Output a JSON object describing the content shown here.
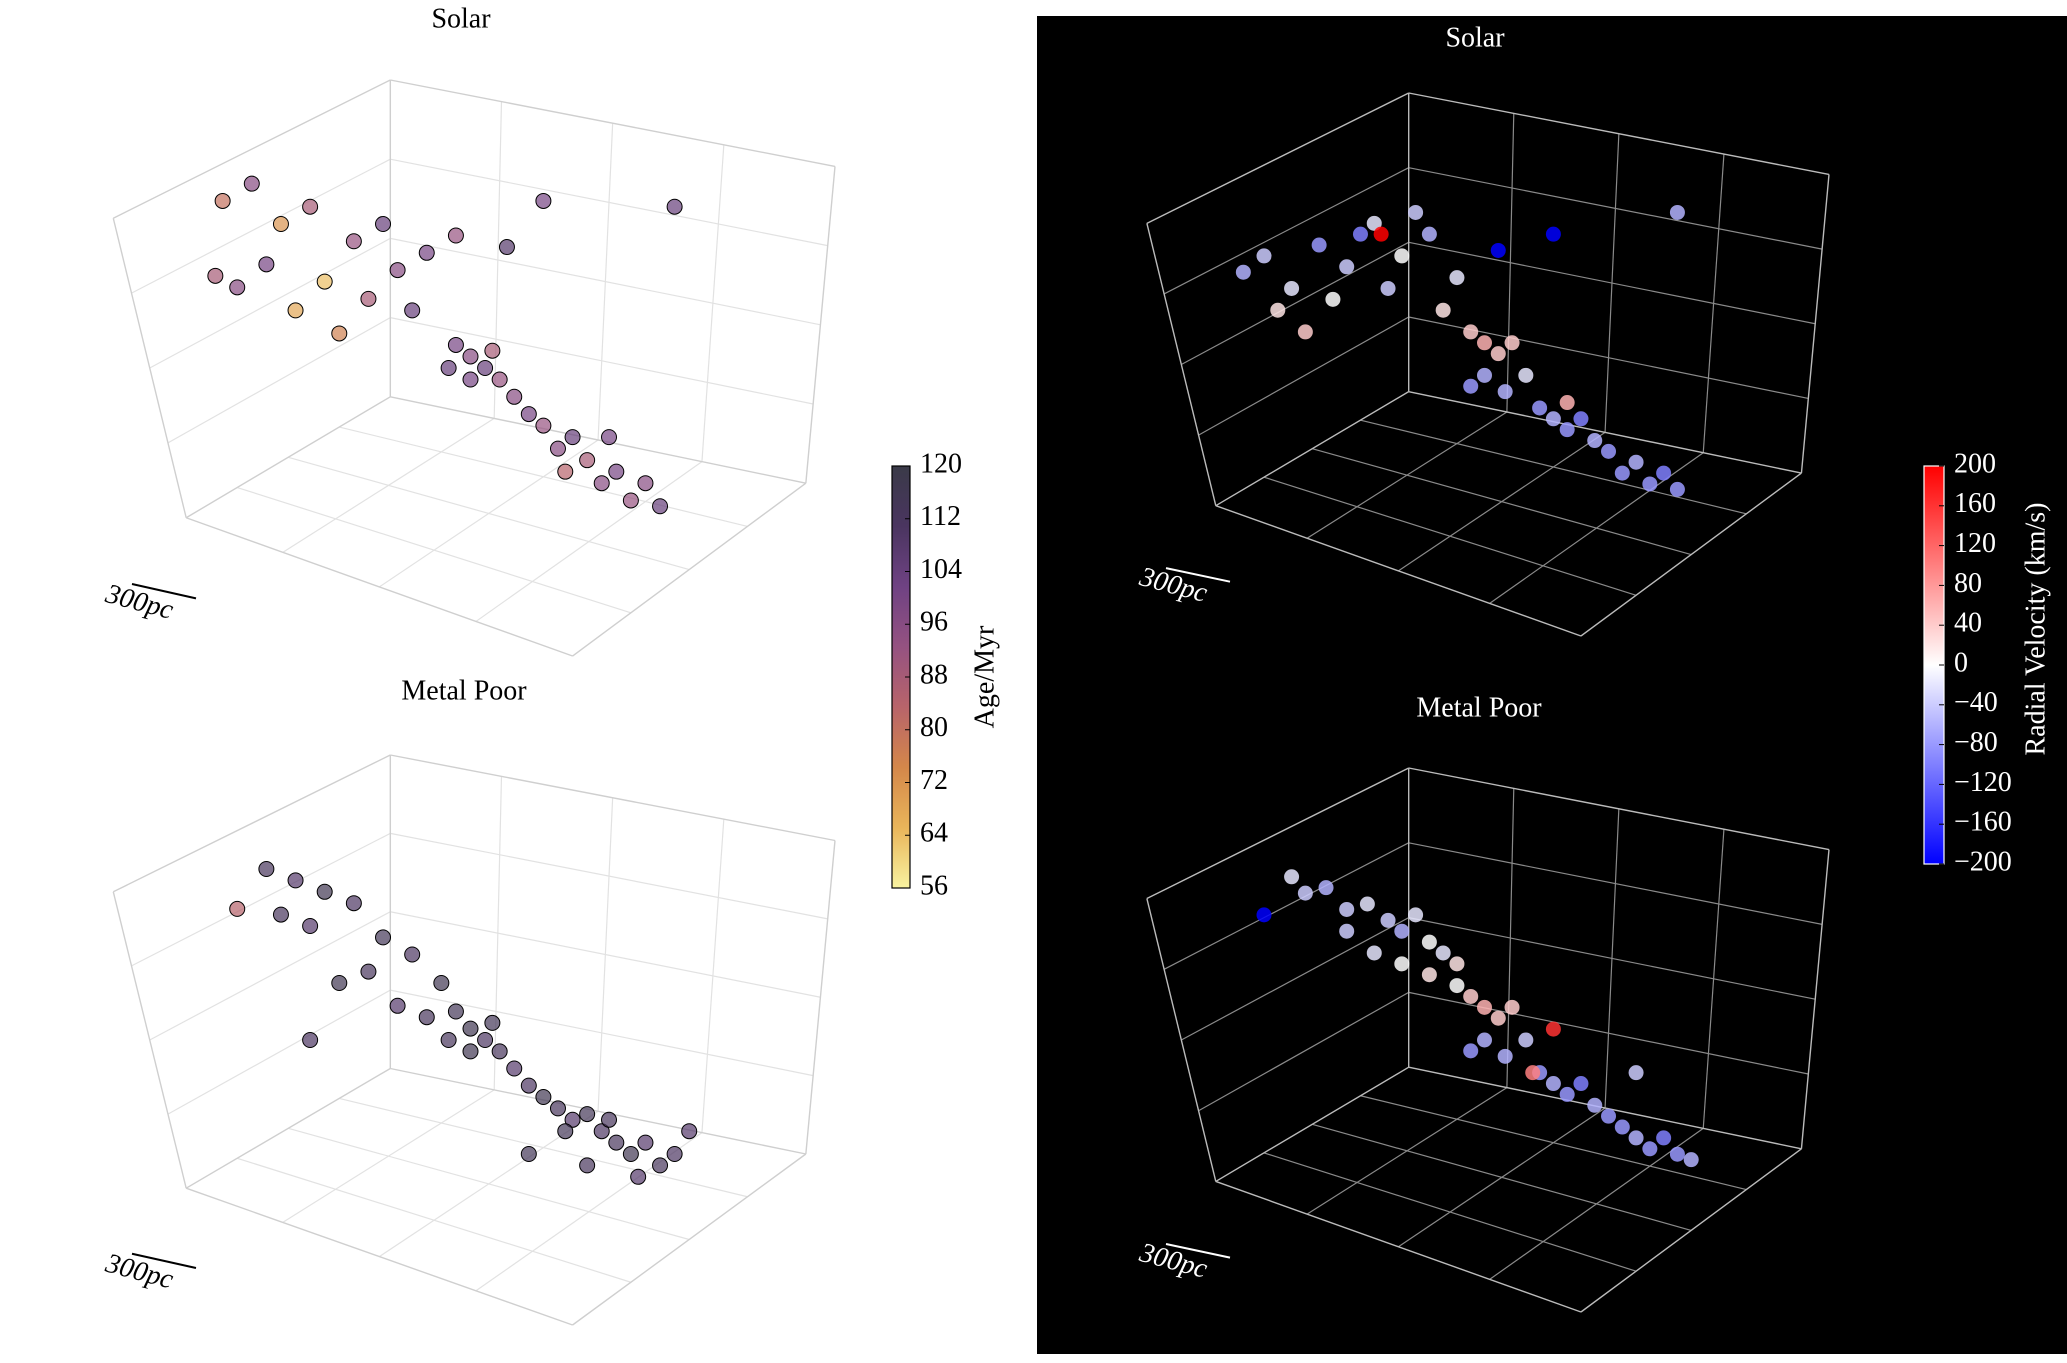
{
  "chart_data": [
    {
      "type": "scatter",
      "title": "Solar",
      "scale_label": "300pc",
      "colorbar": 0,
      "theme": "light",
      "xlim": [
        0,
        100
      ],
      "ylim": [
        0,
        100
      ],
      "x": [
        16,
        20,
        24,
        28,
        22,
        30,
        34,
        38,
        26,
        40,
        36,
        32,
        44,
        48,
        42,
        18,
        15,
        48,
        50,
        52,
        54,
        50,
        56,
        53,
        47,
        58,
        60,
        62,
        64,
        66,
        68,
        70,
        72,
        74,
        76,
        63,
        69,
        60,
        78,
        55
      ],
      "y": [
        79,
        82,
        75,
        78,
        68,
        65,
        72,
        75,
        60,
        67,
        62,
        56,
        70,
        73,
        60,
        64,
        66,
        54,
        52,
        50,
        48,
        48,
        45,
        53,
        50,
        42,
        40,
        36,
        38,
        34,
        30,
        32,
        27,
        30,
        26,
        32,
        38,
        79,
        78,
        71
      ],
      "c": [
        80,
        96,
        72,
        88,
        100,
        64,
        92,
        104,
        68,
        96,
        88,
        76,
        100,
        92,
        104,
        96,
        88,
        100,
        96,
        104,
        92,
        100,
        96,
        88,
        104,
        100,
        92,
        96,
        104,
        88,
        96,
        100,
        92,
        96,
        104,
        84,
        100,
        100,
        104,
        108
      ]
    },
    {
      "type": "scatter",
      "title": "Metal Poor",
      "scale_label": "300pc",
      "colorbar": 0,
      "theme": "light",
      "xlim": [
        0,
        100
      ],
      "ylim": [
        0,
        100
      ],
      "x": [
        18,
        22,
        26,
        30,
        34,
        24,
        28,
        38,
        42,
        36,
        46,
        40,
        44,
        48,
        50,
        52,
        54,
        50,
        56,
        53,
        47,
        58,
        60,
        62,
        64,
        66,
        68,
        70,
        72,
        74,
        76,
        78,
        63,
        69,
        73,
        32,
        28,
        66,
        58,
        80
      ],
      "y": [
        73,
        80,
        78,
        76,
        74,
        72,
        70,
        68,
        65,
        62,
        60,
        56,
        54,
        55,
        52,
        50,
        48,
        48,
        45,
        53,
        50,
        42,
        40,
        38,
        36,
        37,
        34,
        32,
        30,
        32,
        28,
        30,
        34,
        36,
        26,
        60,
        50,
        28,
        30,
        34
      ],
      "c": [
        84,
        112,
        108,
        116,
        110,
        112,
        108,
        114,
        110,
        112,
        116,
        108,
        112,
        114,
        116,
        110,
        112,
        116,
        108,
        114,
        112,
        110,
        116,
        112,
        108,
        114,
        110,
        112,
        116,
        108,
        112,
        110,
        114,
        112,
        108,
        116,
        110,
        112,
        114,
        108
      ]
    },
    {
      "type": "scatter",
      "title": "Solar",
      "scale_label": "300pc",
      "colorbar": 1,
      "theme": "dark",
      "xlim": [
        0,
        100
      ],
      "ylim": [
        0,
        100
      ],
      "x": [
        15,
        18,
        22,
        26,
        30,
        34,
        38,
        42,
        46,
        20,
        28,
        36,
        44,
        24,
        32,
        40,
        48,
        50,
        52,
        54,
        50,
        48,
        53,
        56,
        58,
        60,
        62,
        64,
        66,
        68,
        70,
        72,
        74,
        76,
        78,
        60,
        52,
        35,
        78,
        62
      ],
      "y": [
        67,
        70,
        64,
        72,
        68,
        76,
        70,
        74,
        66,
        60,
        62,
        64,
        60,
        56,
        74,
        78,
        56,
        54,
        52,
        54,
        48,
        46,
        45,
        48,
        42,
        40,
        38,
        40,
        36,
        34,
        30,
        32,
        28,
        30,
        27,
        74,
        71,
        74,
        78,
        43
      ],
      "c": [
        -60,
        -40,
        -20,
        -80,
        -40,
        -20,
        0,
        -60,
        -20,
        20,
        0,
        -40,
        20,
        40,
        -100,
        -40,
        40,
        60,
        40,
        40,
        -60,
        -80,
        -60,
        -20,
        -80,
        -60,
        -80,
        -100,
        -60,
        -80,
        -80,
        -60,
        -80,
        -100,
        -80,
        -200,
        -200,
        200,
        -60,
        60
      ]
    },
    {
      "type": "scatter",
      "title": "Metal Poor",
      "scale_label": "300pc",
      "colorbar": 1,
      "theme": "dark",
      "xlim": [
        0,
        100
      ],
      "ylim": [
        0,
        100
      ],
      "x": [
        22,
        24,
        27,
        30,
        33,
        36,
        38,
        40,
        42,
        44,
        46,
        30,
        34,
        38,
        42,
        46,
        48,
        50,
        52,
        54,
        50,
        48,
        53,
        56,
        58,
        60,
        62,
        64,
        66,
        68,
        70,
        72,
        74,
        76,
        78,
        80,
        18,
        60,
        57,
        72
      ],
      "y": [
        80,
        77,
        78,
        74,
        75,
        72,
        70,
        73,
        68,
        66,
        64,
        70,
        66,
        64,
        62,
        60,
        58,
        56,
        54,
        56,
        50,
        48,
        47,
        50,
        44,
        42,
        40,
        42,
        38,
        36,
        34,
        32,
        30,
        32,
        29,
        28,
        73,
        52,
        44,
        44
      ],
      "c": [
        -20,
        -40,
        -60,
        -40,
        -20,
        -40,
        -60,
        -20,
        0,
        -20,
        20,
        -40,
        -20,
        0,
        20,
        0,
        40,
        60,
        40,
        40,
        -60,
        -80,
        -60,
        -40,
        -80,
        -60,
        -80,
        -100,
        -60,
        -80,
        -80,
        -60,
        -80,
        -100,
        -80,
        -60,
        -200,
        160,
        100,
        -40
      ]
    }
  ],
  "colorbars": [
    {
      "label": "Age/Myr",
      "lim": [
        56,
        120
      ],
      "ticks": [
        56,
        64,
        72,
        80,
        88,
        96,
        104,
        112,
        120
      ],
      "colors": [
        "#f8f3a0",
        "#e9b55a",
        "#d4874a",
        "#b8646a",
        "#955281",
        "#6f4283",
        "#4a3560",
        "#3a3a48"
      ]
    },
    {
      "label": "Radial Velocity (km/s)",
      "lim": [
        -200,
        200
      ],
      "ticks": [
        {
          "value": -200,
          "label": "−200"
        },
        {
          "value": -160,
          "label": "−160"
        },
        {
          "value": -120,
          "label": "−120"
        },
        {
          "value": -80,
          "label": "−80"
        },
        {
          "value": -40,
          "label": "−40"
        },
        0,
        40,
        80,
        120,
        160,
        200
      ],
      "colors": [
        "#0000ff",
        "#ffffff",
        "#ff0000"
      ]
    }
  ]
}
